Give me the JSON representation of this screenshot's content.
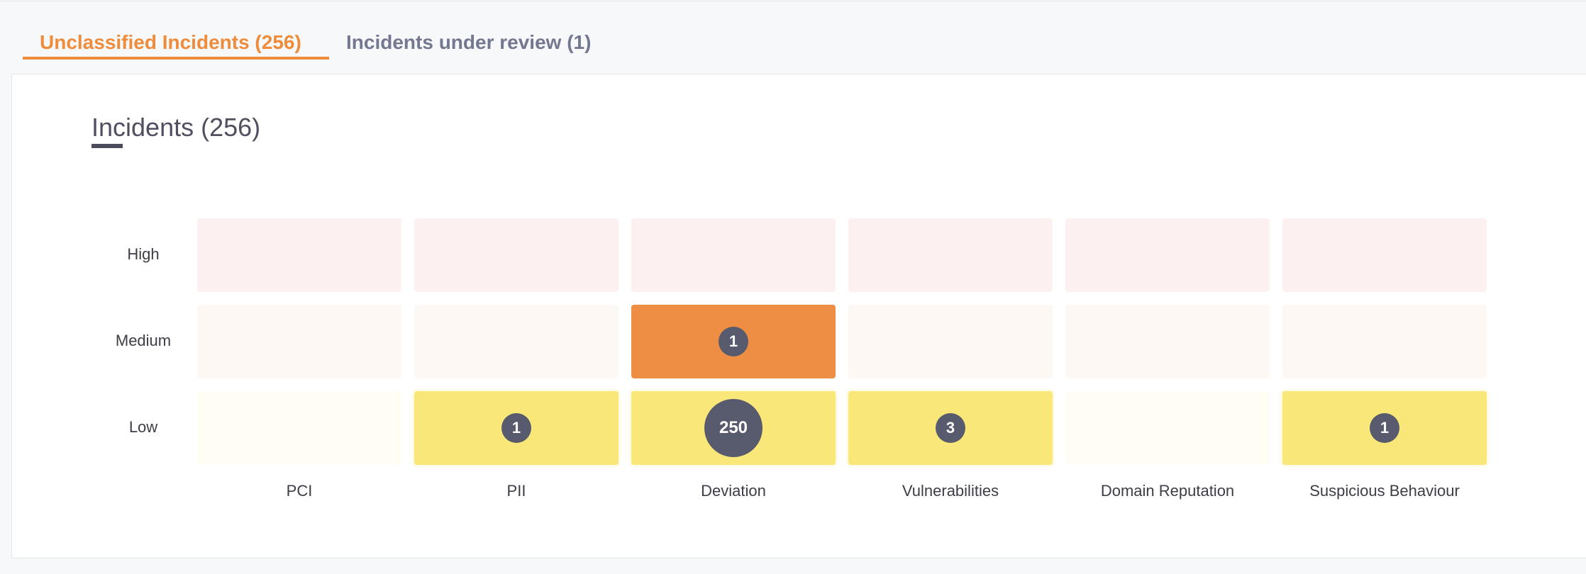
{
  "tabs": {
    "active_label": "Unclassified Incidents (256)",
    "inactive_label": "Incidents under review (1)"
  },
  "panel": {
    "title": "Incidents (256)"
  },
  "matrix": {
    "rows": [
      "High",
      "Medium",
      "Low"
    ],
    "columns": [
      "PCI",
      "PII",
      "Deviation",
      "Vulnerabilities",
      "Domain Reputation",
      "Suspicious Behaviour"
    ],
    "counts": {
      "medium_deviation": "1",
      "low_pii": "1",
      "low_deviation": "250",
      "low_vulnerabilities": "3",
      "low_suspicious_behaviour": "1"
    }
  },
  "colors": {
    "accent": "#ef8c3c",
    "medium": "#ee8e44",
    "low": "#fae77a",
    "badge": "#585a6e"
  }
}
